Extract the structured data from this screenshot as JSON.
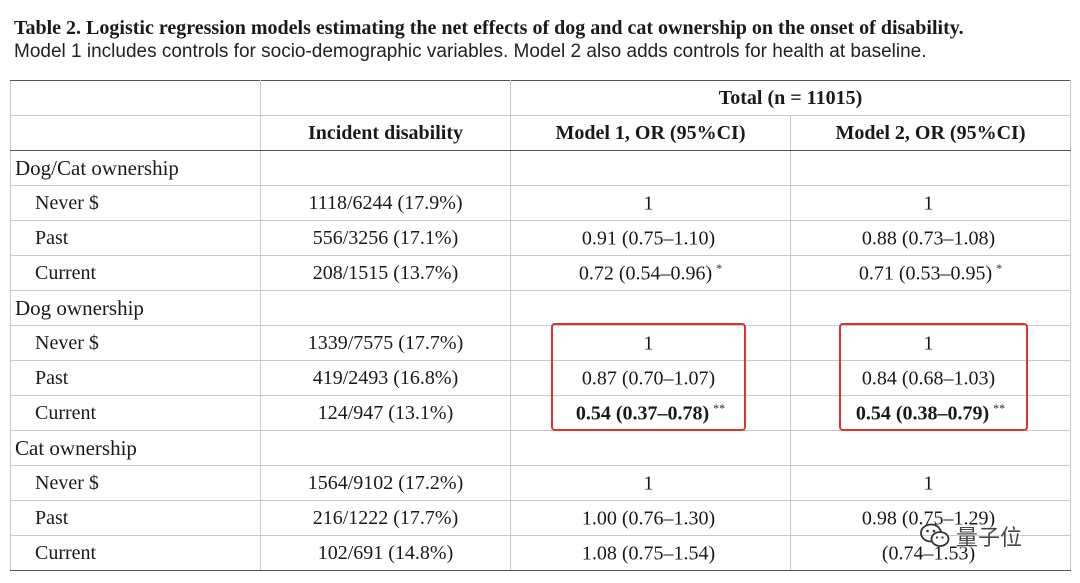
{
  "caption": {
    "title": "Table 2.  Logistic regression models estimating the net effects of dog and cat ownership on the onset of disability.",
    "subtitle": "Model 1 includes controls for socio-demographic variables. Model 2 also adds controls for health at baseline."
  },
  "table": {
    "header_row1": {
      "span_label": "Total (n = 11015)"
    },
    "header_row2": {
      "col1": "Incident disability",
      "col2": "Model 1, OR (95%CI)",
      "col3": "Model 2, OR (95%CI)"
    },
    "groups": [
      {
        "label": "Dog/Cat ownership",
        "rows": [
          {
            "label": "Never $",
            "incident": "1118/6244 (17.9%)",
            "m1": "1",
            "m1_sig": "",
            "m2": "1",
            "m2_sig": ""
          },
          {
            "label": "Past",
            "incident": "556/3256 (17.1%)",
            "m1": "0.91 (0.75–1.10)",
            "m1_sig": "",
            "m2": "0.88 (0.73–1.08)",
            "m2_sig": ""
          },
          {
            "label": "Current",
            "incident": "208/1515 (13.7%)",
            "m1": "0.72 (0.54–0.96)",
            "m1_sig": "*",
            "m2": "0.71 (0.53–0.95)",
            "m2_sig": "*"
          }
        ]
      },
      {
        "label": "Dog ownership",
        "rows": [
          {
            "label": "Never $",
            "incident": "1339/7575 (17.7%)",
            "m1": "1",
            "m1_sig": "",
            "m2": "1",
            "m2_sig": ""
          },
          {
            "label": "Past",
            "incident": "419/2493 (16.8%)",
            "m1": "0.87 (0.70–1.07)",
            "m1_sig": "",
            "m2": "0.84 (0.68–1.03)",
            "m2_sig": ""
          },
          {
            "label": "Current",
            "incident": "124/947 (13.1%)",
            "m1": "0.54 (0.37–0.78)",
            "m1_sig": "**",
            "m2": "0.54 (0.38–0.79)",
            "m2_sig": "**"
          }
        ]
      },
      {
        "label": "Cat ownership",
        "rows": [
          {
            "label": "Never $",
            "incident": "1564/9102 (17.2%)",
            "m1": "1",
            "m1_sig": "",
            "m2": "1",
            "m2_sig": ""
          },
          {
            "label": "Past",
            "incident": "216/1222 (17.7%)",
            "m1": "1.00 (0.76–1.30)",
            "m1_sig": "",
            "m2": "0.98 (0.75–1.29)",
            "m2_sig": ""
          },
          {
            "label": "Current",
            "incident": "102/691 (14.8%)",
            "m1": "1.08 (0.75–1.54)",
            "m1_sig": "",
            "m2": "(0.74–1.53)",
            "m2_sig": ""
          }
        ]
      }
    ]
  },
  "highlight_color": "#e0332b",
  "watermark": {
    "icon": "wechat-icon",
    "text": "量子位"
  }
}
